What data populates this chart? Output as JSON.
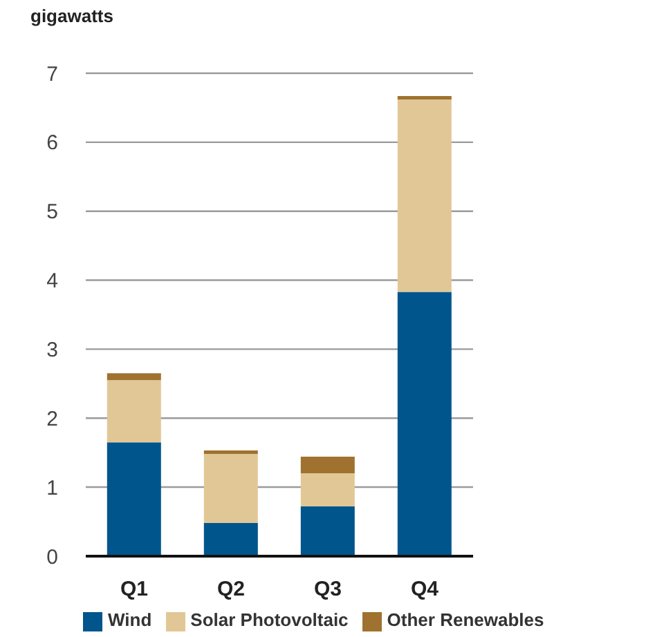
{
  "chart_data": {
    "type": "bar",
    "ylabel": "gigawatts",
    "categories": [
      "Q1",
      "Q2",
      "Q3",
      "Q4"
    ],
    "series": [
      {
        "name": "Wind",
        "color": "#00558c",
        "values": [
          1.65,
          0.48,
          0.72,
          3.83
        ]
      },
      {
        "name": "Solar Photovoltaic",
        "color": "#e2c796",
        "values": [
          0.9,
          1.0,
          0.48,
          2.79
        ]
      },
      {
        "name": "Other Renewables",
        "color": "#a0722f",
        "values": [
          0.1,
          0.05,
          0.24,
          0.05
        ]
      }
    ],
    "stacked": true,
    "ylim": [
      0,
      7
    ],
    "yticks": [
      0,
      1,
      2,
      3,
      4,
      5,
      6,
      7
    ],
    "grid": "y",
    "legend": "bottom"
  }
}
